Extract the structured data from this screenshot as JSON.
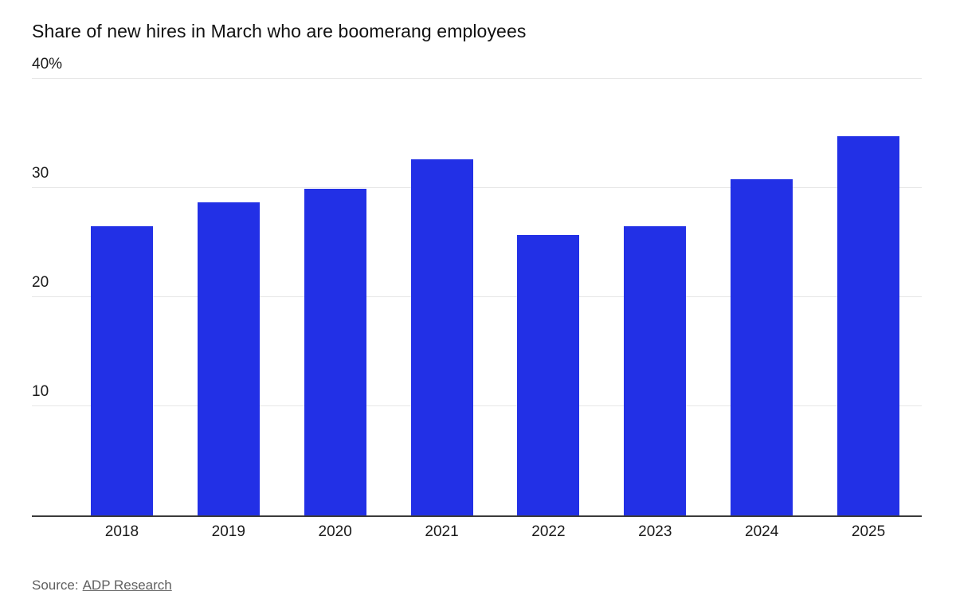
{
  "chart_data": {
    "type": "bar",
    "title": "Share of new hires in March who are boomerang employees",
    "categories": [
      "2018",
      "2019",
      "2020",
      "2021",
      "2022",
      "2023",
      "2024",
      "2025"
    ],
    "values": [
      26.5,
      28.7,
      29.9,
      32.6,
      25.7,
      26.5,
      30.8,
      34.7
    ],
    "xlabel": "",
    "ylabel": "",
    "ylim": [
      0,
      40
    ],
    "yticks": [
      10,
      20,
      30,
      40
    ],
    "ytick_labels": [
      "10",
      "20",
      "30",
      "40%"
    ],
    "bar_color": "#2230e6",
    "grid": true,
    "legend": "none"
  },
  "source": {
    "prefix": "Source:",
    "link_text": "ADP Research"
  }
}
